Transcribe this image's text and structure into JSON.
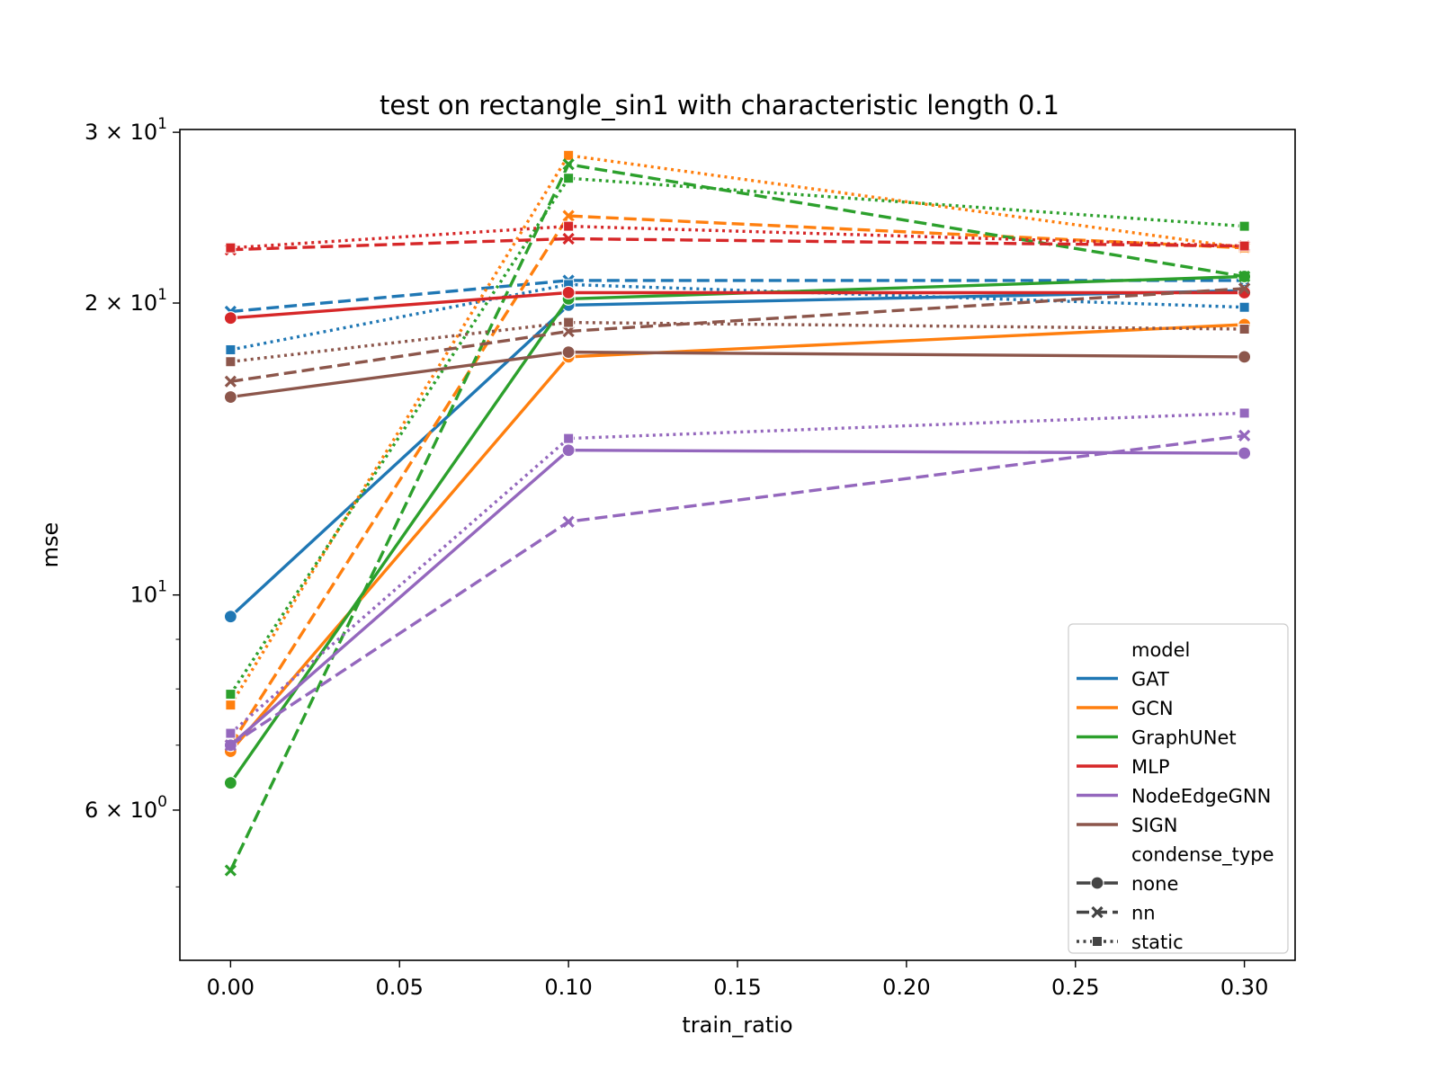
{
  "chart_data": {
    "type": "line",
    "title": "test on rectangle_sin1 with characteristic length 0.1",
    "xlabel": "train_ratio",
    "ylabel": "mse",
    "x": [
      0.0,
      0.1,
      0.3
    ],
    "xlim": [
      -0.015,
      0.315
    ],
    "ylim": [
      4.2,
      30.2
    ],
    "yscale": "log",
    "x_ticks": [
      {
        "value": 0.0,
        "label": "0.00"
      },
      {
        "value": 0.05,
        "label": "0.05"
      },
      {
        "value": 0.1,
        "label": "0.10"
      },
      {
        "value": 0.15,
        "label": "0.15"
      },
      {
        "value": 0.2,
        "label": "0.20"
      },
      {
        "value": 0.25,
        "label": "0.25"
      },
      {
        "value": 0.3,
        "label": "0.30"
      }
    ],
    "y_major_ticks": [
      {
        "value": 6,
        "base": "6 × 10",
        "exp": "0"
      },
      {
        "value": 10,
        "base": "10",
        "exp": "1"
      },
      {
        "value": 20,
        "base": "2 × 10",
        "exp": "1"
      },
      {
        "value": 30,
        "base": "3 × 10",
        "exp": "1"
      }
    ],
    "y_minor_ticks": [
      5,
      7,
      8,
      9,
      40
    ],
    "legend": {
      "placement": "lower-right",
      "model_title": "model",
      "models": [
        {
          "name": "GAT",
          "color": "#1f77b4"
        },
        {
          "name": "GCN",
          "color": "#ff7f0e"
        },
        {
          "name": "GraphUNet",
          "color": "#2ca02c"
        },
        {
          "name": "MLP",
          "color": "#d62728"
        },
        {
          "name": "NodeEdgeGNN",
          "color": "#9467bd"
        },
        {
          "name": "SIGN",
          "color": "#8c564b"
        }
      ],
      "style_title": "condense_type",
      "styles": [
        {
          "name": "none",
          "dash": "solid",
          "marker": "circle"
        },
        {
          "name": "nn",
          "dash": "dashed",
          "marker": "x"
        },
        {
          "name": "static",
          "dash": "dotted",
          "marker": "square"
        }
      ]
    },
    "series": [
      {
        "model": "GAT",
        "condense_type": "none",
        "values": [
          9.5,
          19.9,
          20.6
        ]
      },
      {
        "model": "GAT",
        "condense_type": "nn",
        "values": [
          19.6,
          21.1,
          21.1
        ]
      },
      {
        "model": "GAT",
        "condense_type": "static",
        "values": [
          17.9,
          20.9,
          19.8
        ]
      },
      {
        "model": "GCN",
        "condense_type": "none",
        "values": [
          6.9,
          17.6,
          19.0
        ]
      },
      {
        "model": "GCN",
        "condense_type": "nn",
        "values": [
          7.0,
          24.6,
          22.8
        ]
      },
      {
        "model": "GCN",
        "condense_type": "static",
        "values": [
          7.7,
          28.4,
          22.8
        ]
      },
      {
        "model": "GraphUNet",
        "condense_type": "none",
        "values": [
          6.4,
          20.2,
          21.3
        ]
      },
      {
        "model": "GraphUNet",
        "condense_type": "nn",
        "values": [
          5.2,
          27.8,
          21.3
        ]
      },
      {
        "model": "GraphUNet",
        "condense_type": "static",
        "values": [
          7.9,
          26.9,
          24.0
        ]
      },
      {
        "model": "MLP",
        "condense_type": "none",
        "values": [
          19.3,
          20.5,
          20.5
        ]
      },
      {
        "model": "MLP",
        "condense_type": "nn",
        "values": [
          22.7,
          23.3,
          22.9
        ]
      },
      {
        "model": "MLP",
        "condense_type": "static",
        "values": [
          22.8,
          24.0,
          22.9
        ]
      },
      {
        "model": "NodeEdgeGNN",
        "condense_type": "none",
        "values": [
          7.0,
          14.1,
          14.0
        ]
      },
      {
        "model": "NodeEdgeGNN",
        "condense_type": "nn",
        "values": [
          7.0,
          11.9,
          14.6
        ]
      },
      {
        "model": "NodeEdgeGNN",
        "condense_type": "static",
        "values": [
          7.2,
          14.5,
          15.4
        ]
      },
      {
        "model": "SIGN",
        "condense_type": "none",
        "values": [
          16.0,
          17.8,
          17.6
        ]
      },
      {
        "model": "SIGN",
        "condense_type": "nn",
        "values": [
          16.6,
          18.7,
          20.7
        ]
      },
      {
        "model": "SIGN",
        "condense_type": "static",
        "values": [
          17.4,
          19.1,
          18.8
        ]
      }
    ]
  }
}
